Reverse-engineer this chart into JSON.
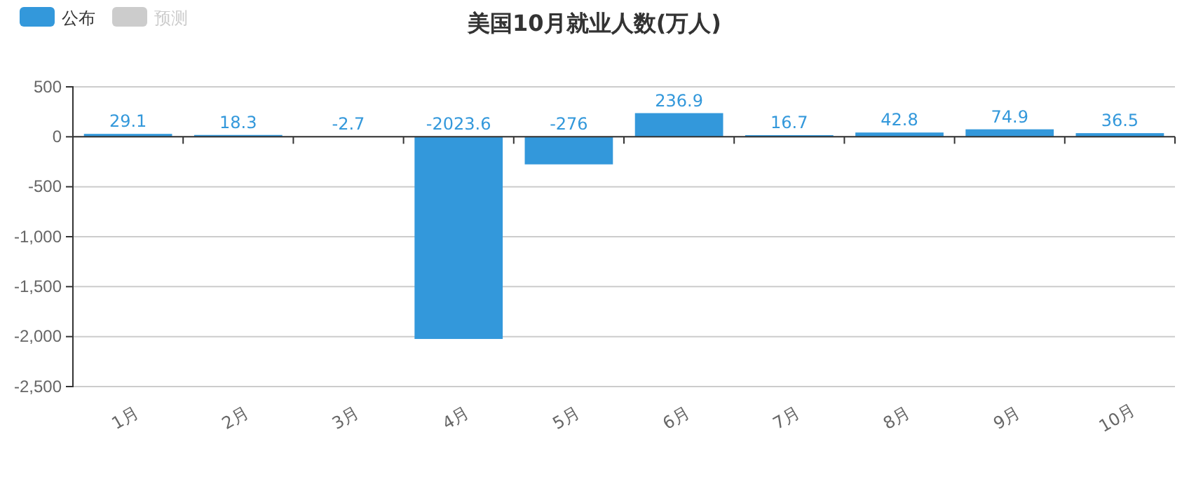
{
  "chart_data": {
    "type": "bar",
    "title": "美国10月就业人数(万人)",
    "categories": [
      "1月",
      "2月",
      "3月",
      "4月",
      "5月",
      "6月",
      "7月",
      "8月",
      "9月",
      "10月"
    ],
    "series": [
      {
        "name": "公布",
        "color": "#3398db",
        "values": [
          29.1,
          18.3,
          -2.7,
          -2023.6,
          -276,
          236.9,
          16.7,
          42.8,
          74.9,
          36.5
        ]
      },
      {
        "name": "预测",
        "color": "#cccccc",
        "values": [
          null,
          null,
          null,
          null,
          null,
          null,
          null,
          null,
          null,
          null
        ]
      }
    ],
    "ylim": [
      -2500,
      500
    ],
    "yticks": [
      {
        "value": -2500,
        "label": "-2,500"
      },
      {
        "value": -2000,
        "label": "-2,000"
      },
      {
        "value": -1500,
        "label": "-1,500"
      },
      {
        "value": -1000,
        "label": "-1,000"
      },
      -500,
      0,
      500
    ],
    "grid": "y",
    "legend": "top left",
    "data_labels": true
  }
}
